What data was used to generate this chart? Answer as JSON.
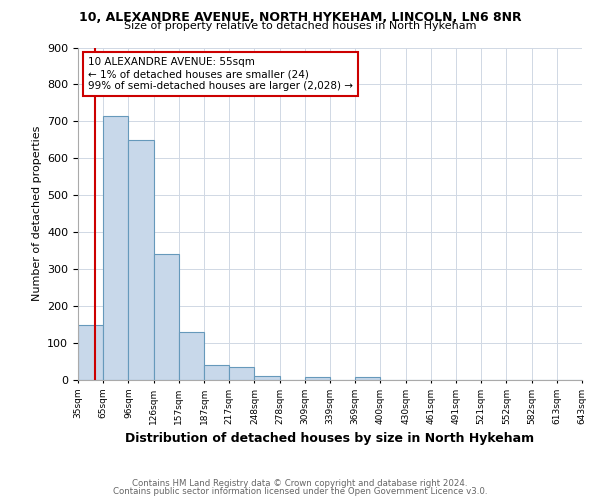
{
  "title1": "10, ALEXANDRE AVENUE, NORTH HYKEHAM, LINCOLN, LN6 8NR",
  "title2": "Size of property relative to detached houses in North Hykeham",
  "xlabel": "Distribution of detached houses by size in North Hykeham",
  "ylabel": "Number of detached properties",
  "footer1": "Contains HM Land Registry data © Crown copyright and database right 2024.",
  "footer2": "Contains public sector information licensed under the Open Government Licence v3.0.",
  "annotation_line1": "10 ALEXANDRE AVENUE: 55sqm",
  "annotation_line2": "← 1% of detached houses are smaller (24)",
  "annotation_line3": "99% of semi-detached houses are larger (2,028) →",
  "bar_color": "#c8d8ea",
  "bar_edge_color": "#6699bb",
  "red_line_color": "#cc0000",
  "annotation_box_color": "#cc0000",
  "bins": [
    "35sqm",
    "65sqm",
    "96sqm",
    "126sqm",
    "157sqm",
    "187sqm",
    "217sqm",
    "248sqm",
    "278sqm",
    "309sqm",
    "339sqm",
    "369sqm",
    "400sqm",
    "430sqm",
    "461sqm",
    "491sqm",
    "521sqm",
    "552sqm",
    "582sqm",
    "613sqm",
    "643sqm"
  ],
  "values": [
    150,
    715,
    650,
    340,
    130,
    40,
    35,
    12,
    0,
    8,
    0,
    8,
    0,
    0,
    0,
    0,
    0,
    0,
    0,
    0
  ],
  "ylim": [
    0,
    900
  ],
  "yticks": [
    0,
    100,
    200,
    300,
    400,
    500,
    600,
    700,
    800,
    900
  ],
  "background_color": "#ffffff",
  "grid_color": "#d0d8e4"
}
